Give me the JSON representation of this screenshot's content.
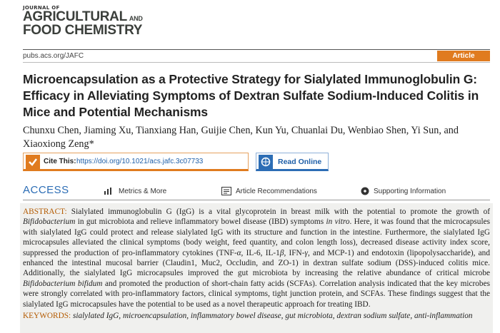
{
  "header": {
    "journal_prefix": "JOURNAL OF",
    "journal_line1": "AGRICULTURAL",
    "journal_and": "AND",
    "journal_line2": "FOOD CHEMISTRY",
    "url": "pubs.acs.org/JAFC",
    "article_type": "Article"
  },
  "article": {
    "title": "Microencapsulation as a Protective Strategy for Sialylated Immunoglobulin G: Efficacy in Alleviating Symptoms of Dextran Sulfate Sodium-Induced Colitis in Mice and Potential Mechanisms",
    "authors": "Chunxu Chen, Jiaming Xu, Tianxiang Han, Guijie Chen, Kun Yu, Chuanlai Du, Wenbiao Shen, Yi Sun, and Xiaoxiong Zeng*"
  },
  "links": {
    "cite_label": "Cite This:",
    "doi": "https://doi.org/10.1021/acs.jafc.3c07733",
    "read_online": "Read Online"
  },
  "access": {
    "label": "ACCESS",
    "metrics": "Metrics & More",
    "recommendations": "Article Recommendations",
    "supporting": "Supporting Information"
  },
  "abstract": {
    "label": "ABSTRACT:",
    "segments": [
      "Sialylated immunoglobulin G (IgG) is a vital glycoprotein in breast milk with the potential to promote the growth of ",
      "Bifidobacterium",
      " in gut microbiota and relieve inflammatory bowel disease (IBD) symptoms ",
      "in vitro",
      ". Here, it was found that the microcapsules with sialylated IgG could protect and release sialylated IgG with its structure and function in the intestine. Furthermore, the sialylated IgG microcapsules alleviated the clinical symptoms (body weight, feed quantity, and colon length loss), decreased disease activity index score, suppressed the production of pro-inflammatory cytokines (TNF-",
      "α",
      ", IL-6, IL-1",
      "β",
      ", IFN-",
      "γ",
      ", and MCP-1) and endotoxin (lipopolysaccharide), and enhanced the intestinal mucosal barrier (Claudin1, Muc2, Occludin, and ZO-1) in dextran sulfate sodium (DSS)-induced colitis mice. Additionally, the sialylated IgG microcapsules improved the gut microbiota by increasing the relative abundance of critical microbe ",
      "Bifidobacterium bifidum",
      " and promoted the production of short-chain fatty acids (SCFAs). Correlation analysis indicated that the key microbes were strongly correlated with pro-inflammatory factors, clinical symptoms, tight junction protein, and SCFAs. These findings suggest that the sialylated IgG microcapsules have the potential to be used as a novel therapeutic approach for treating IBD."
    ]
  },
  "keywords": {
    "label": "KEYWORDS:",
    "text": "sialylated IgG, microencapsulation, inflammatory bowel disease, gut microbiota, dextran sodium sulfate, anti-inflammation"
  }
}
